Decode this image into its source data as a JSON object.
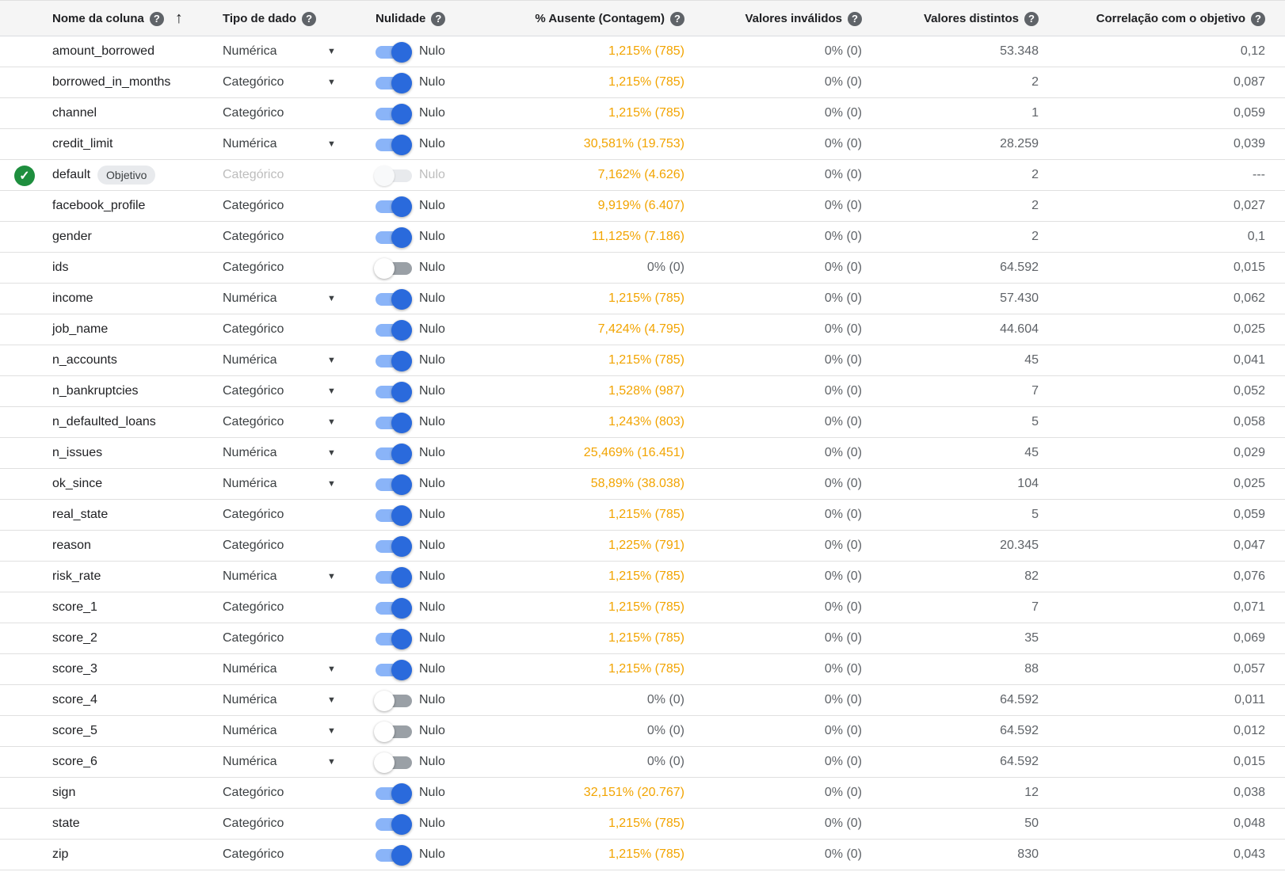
{
  "headers": {
    "name": "Nome da coluna",
    "type": "Tipo de dado",
    "nullability": "Nulidade",
    "missing": "% Ausente (Contagem)",
    "invalid": "Valores inválidos",
    "distinct": "Valores distintos",
    "correlation": "Correlação com o objetivo"
  },
  "target_chip": "Objetivo",
  "colors": {
    "warning": "#f2a400",
    "toggle_on": "#2a6adc",
    "toggle_track_on": "#8ab4f8",
    "check_green": "#1e8e3e"
  },
  "rows": [
    {
      "name": "amount_borrowed",
      "type": "Numérica",
      "dropdown": true,
      "toggle": "on",
      "nulo": "Nulo",
      "missing": "1,215% (785)",
      "missing_warn": true,
      "invalid": "0% (0)",
      "distinct": "53.348",
      "corr": "0,12"
    },
    {
      "name": "borrowed_in_months",
      "type": "Categórico",
      "dropdown": true,
      "toggle": "on",
      "nulo": "Nulo",
      "missing": "1,215% (785)",
      "missing_warn": true,
      "invalid": "0% (0)",
      "distinct": "2",
      "corr": "0,087"
    },
    {
      "name": "channel",
      "type": "Categórico",
      "dropdown": false,
      "toggle": "on",
      "nulo": "Nulo",
      "missing": "1,215% (785)",
      "missing_warn": true,
      "invalid": "0% (0)",
      "distinct": "1",
      "corr": "0,059"
    },
    {
      "name": "credit_limit",
      "type": "Numérica",
      "dropdown": true,
      "toggle": "on",
      "nulo": "Nulo",
      "missing": "30,581% (19.753)",
      "missing_warn": true,
      "invalid": "0% (0)",
      "distinct": "28.259",
      "corr": "0,039"
    },
    {
      "name": "default",
      "type": "Categórico",
      "dropdown": false,
      "toggle": "disabled",
      "nulo": "Nulo",
      "missing": "7,162% (4.626)",
      "missing_warn": true,
      "invalid": "0% (0)",
      "distinct": "2",
      "corr": "---",
      "target": true
    },
    {
      "name": "facebook_profile",
      "type": "Categórico",
      "dropdown": false,
      "toggle": "on",
      "nulo": "Nulo",
      "missing": "9,919% (6.407)",
      "missing_warn": true,
      "invalid": "0% (0)",
      "distinct": "2",
      "corr": "0,027"
    },
    {
      "name": "gender",
      "type": "Categórico",
      "dropdown": false,
      "toggle": "on",
      "nulo": "Nulo",
      "missing": "11,125% (7.186)",
      "missing_warn": true,
      "invalid": "0% (0)",
      "distinct": "2",
      "corr": "0,1"
    },
    {
      "name": "ids",
      "type": "Categórico",
      "dropdown": false,
      "toggle": "off",
      "nulo": "Nulo",
      "missing": "0% (0)",
      "missing_warn": false,
      "invalid": "0% (0)",
      "distinct": "64.592",
      "corr": "0,015"
    },
    {
      "name": "income",
      "type": "Numérica",
      "dropdown": true,
      "toggle": "on",
      "nulo": "Nulo",
      "missing": "1,215% (785)",
      "missing_warn": true,
      "invalid": "0% (0)",
      "distinct": "57.430",
      "corr": "0,062"
    },
    {
      "name": "job_name",
      "type": "Categórico",
      "dropdown": false,
      "toggle": "on",
      "nulo": "Nulo",
      "missing": "7,424% (4.795)",
      "missing_warn": true,
      "invalid": "0% (0)",
      "distinct": "44.604",
      "corr": "0,025"
    },
    {
      "name": "n_accounts",
      "type": "Numérica",
      "dropdown": true,
      "toggle": "on",
      "nulo": "Nulo",
      "missing": "1,215% (785)",
      "missing_warn": true,
      "invalid": "0% (0)",
      "distinct": "45",
      "corr": "0,041"
    },
    {
      "name": "n_bankruptcies",
      "type": "Categórico",
      "dropdown": true,
      "toggle": "on",
      "nulo": "Nulo",
      "missing": "1,528% (987)",
      "missing_warn": true,
      "invalid": "0% (0)",
      "distinct": "7",
      "corr": "0,052"
    },
    {
      "name": "n_defaulted_loans",
      "type": "Categórico",
      "dropdown": true,
      "toggle": "on",
      "nulo": "Nulo",
      "missing": "1,243% (803)",
      "missing_warn": true,
      "invalid": "0% (0)",
      "distinct": "5",
      "corr": "0,058"
    },
    {
      "name": "n_issues",
      "type": "Numérica",
      "dropdown": true,
      "toggle": "on",
      "nulo": "Nulo",
      "missing": "25,469% (16.451)",
      "missing_warn": true,
      "invalid": "0% (0)",
      "distinct": "45",
      "corr": "0,029"
    },
    {
      "name": "ok_since",
      "type": "Numérica",
      "dropdown": true,
      "toggle": "on",
      "nulo": "Nulo",
      "missing": "58,89% (38.038)",
      "missing_warn": true,
      "invalid": "0% (0)",
      "distinct": "104",
      "corr": "0,025"
    },
    {
      "name": "real_state",
      "type": "Categórico",
      "dropdown": false,
      "toggle": "on",
      "nulo": "Nulo",
      "missing": "1,215% (785)",
      "missing_warn": true,
      "invalid": "0% (0)",
      "distinct": "5",
      "corr": "0,059"
    },
    {
      "name": "reason",
      "type": "Categórico",
      "dropdown": false,
      "toggle": "on",
      "nulo": "Nulo",
      "missing": "1,225% (791)",
      "missing_warn": true,
      "invalid": "0% (0)",
      "distinct": "20.345",
      "corr": "0,047"
    },
    {
      "name": "risk_rate",
      "type": "Numérica",
      "dropdown": true,
      "toggle": "on",
      "nulo": "Nulo",
      "missing": "1,215% (785)",
      "missing_warn": true,
      "invalid": "0% (0)",
      "distinct": "82",
      "corr": "0,076"
    },
    {
      "name": "score_1",
      "type": "Categórico",
      "dropdown": false,
      "toggle": "on",
      "nulo": "Nulo",
      "missing": "1,215% (785)",
      "missing_warn": true,
      "invalid": "0% (0)",
      "distinct": "7",
      "corr": "0,071"
    },
    {
      "name": "score_2",
      "type": "Categórico",
      "dropdown": false,
      "toggle": "on",
      "nulo": "Nulo",
      "missing": "1,215% (785)",
      "missing_warn": true,
      "invalid": "0% (0)",
      "distinct": "35",
      "corr": "0,069"
    },
    {
      "name": "score_3",
      "type": "Numérica",
      "dropdown": true,
      "toggle": "on",
      "nulo": "Nulo",
      "missing": "1,215% (785)",
      "missing_warn": true,
      "invalid": "0% (0)",
      "distinct": "88",
      "corr": "0,057"
    },
    {
      "name": "score_4",
      "type": "Numérica",
      "dropdown": true,
      "toggle": "off",
      "nulo": "Nulo",
      "missing": "0% (0)",
      "missing_warn": false,
      "invalid": "0% (0)",
      "distinct": "64.592",
      "corr": "0,011"
    },
    {
      "name": "score_5",
      "type": "Numérica",
      "dropdown": true,
      "toggle": "off",
      "nulo": "Nulo",
      "missing": "0% (0)",
      "missing_warn": false,
      "invalid": "0% (0)",
      "distinct": "64.592",
      "corr": "0,012"
    },
    {
      "name": "score_6",
      "type": "Numérica",
      "dropdown": true,
      "toggle": "off",
      "nulo": "Nulo",
      "missing": "0% (0)",
      "missing_warn": false,
      "invalid": "0% (0)",
      "distinct": "64.592",
      "corr": "0,015"
    },
    {
      "name": "sign",
      "type": "Categórico",
      "dropdown": false,
      "toggle": "on",
      "nulo": "Nulo",
      "missing": "32,151% (20.767)",
      "missing_warn": true,
      "invalid": "0% (0)",
      "distinct": "12",
      "corr": "0,038"
    },
    {
      "name": "state",
      "type": "Categórico",
      "dropdown": false,
      "toggle": "on",
      "nulo": "Nulo",
      "missing": "1,215% (785)",
      "missing_warn": true,
      "invalid": "0% (0)",
      "distinct": "50",
      "corr": "0,048"
    },
    {
      "name": "zip",
      "type": "Categórico",
      "dropdown": false,
      "toggle": "on",
      "nulo": "Nulo",
      "missing": "1,215% (785)",
      "missing_warn": true,
      "invalid": "0% (0)",
      "distinct": "830",
      "corr": "0,043"
    }
  ]
}
